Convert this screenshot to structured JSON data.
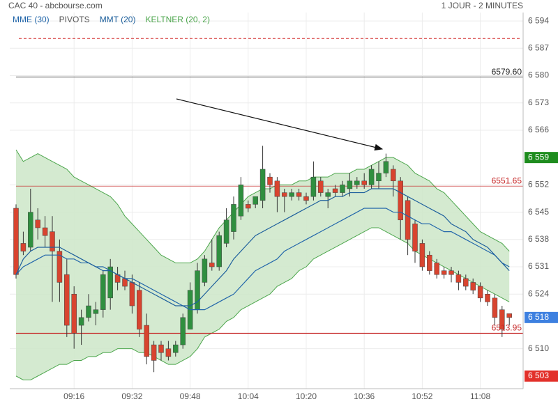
{
  "chart_data": {
    "type": "candlestick",
    "title": "CAC 40 - abcbourse.com",
    "subtitle": "1 JOUR - 2 MINUTES",
    "categories": [
      null,
      null,
      null,
      null,
      null,
      null,
      null,
      null,
      "09:16",
      null,
      null,
      null,
      null,
      null,
      null,
      null,
      "09:32",
      null,
      null,
      null,
      null,
      null,
      null,
      null,
      "09:48",
      null,
      null,
      null,
      null,
      null,
      null,
      null,
      "10:04",
      null,
      null,
      null,
      null,
      null,
      null,
      null,
      "10:20",
      null,
      null,
      null,
      null,
      null,
      null,
      null,
      "10:36",
      null,
      null,
      null,
      null,
      null,
      null,
      null,
      "10:52",
      null,
      null,
      null,
      null,
      null,
      null,
      null,
      "11:08",
      null,
      null,
      null,
      null
    ],
    "open": [
      6546,
      6537,
      6536,
      6543,
      6541,
      6540,
      6535,
      6529,
      6524,
      6516,
      6518,
      6519,
      6520,
      6523,
      6529,
      6528,
      6527,
      6525,
      6516,
      6511,
      6511,
      6510,
      6509,
      6511,
      6515,
      6520,
      6527,
      6532,
      6531,
      6537,
      6540,
      6544,
      6547,
      6547,
      6548,
      6554,
      6553,
      6550,
      6549,
      6550,
      6549,
      6549,
      6553,
      6549,
      6551,
      6550,
      6551,
      6552,
      6553,
      6552,
      6553,
      6555,
      6556,
      6553,
      6548,
      6542,
      6537,
      6534,
      6532,
      6530,
      6530,
      6529,
      6528,
      6527,
      6526,
      6524,
      6523,
      6520,
      6519
    ],
    "high": [
      6547,
      6540,
      6551,
      6546,
      6544,
      6544,
      6538,
      6533,
      6526,
      6520,
      6524,
      6522,
      6530,
      6533,
      6531,
      6530,
      6529,
      6527,
      6519,
      6512,
      6512,
      6512,
      6512,
      6519,
      6527,
      6532,
      6534,
      6538,
      6540,
      6546,
      6549,
      6554,
      6548,
      6549,
      6562,
      6555,
      6554,
      6551,
      6551,
      6551,
      6550,
      6558,
      6554,
      6551,
      6552,
      6553,
      6555,
      6554,
      6555,
      6557,
      6558,
      6560,
      6557,
      6554,
      6549,
      6543,
      6538,
      6535,
      6533,
      6531,
      6531,
      6530,
      6529,
      6528,
      6527,
      6525,
      6524,
      6521,
      6519
    ],
    "low": [
      6528,
      6534,
      6535,
      6538,
      6536,
      6522,
      6522,
      6513,
      6510,
      6511,
      6517,
      6516,
      6518,
      6520,
      6525,
      6525,
      6519,
      6513,
      6506,
      6504,
      6507,
      6507,
      6508,
      6510,
      6515,
      6519,
      6526,
      6530,
      6530,
      6536,
      6538,
      6543,
      6545,
      6546,
      6546,
      6550,
      6545,
      6545,
      6548,
      6548,
      6547,
      6548,
      6549,
      6546,
      6549,
      6549,
      6549,
      6551,
      6551,
      6551,
      6551,
      6554,
      6549,
      6538,
      6534,
      6532,
      6530,
      6529,
      6528,
      6528,
      6527,
      6525,
      6525,
      6524,
      6522,
      6521,
      6516,
      6513,
      6516
    ],
    "close": [
      6529,
      6535,
      6545,
      6541,
      6539,
      6535,
      6527,
      6516,
      6514,
      6518,
      6521,
      6520,
      6529,
      6531,
      6527,
      6526,
      6521,
      6515,
      6508,
      6507,
      6509,
      6508,
      6511,
      6518,
      6525,
      6530,
      6533,
      6531,
      6539,
      6543,
      6547,
      6552,
      6546,
      6549,
      6556,
      6552,
      6549,
      6549,
      6550,
      6549,
      6548,
      6554,
      6550,
      6550,
      6550,
      6552,
      6553,
      6553,
      6552,
      6556,
      6555,
      6558,
      6553,
      6543,
      6538,
      6535,
      6531,
      6530,
      6529,
      6529,
      6529,
      6527,
      6526,
      6525,
      6523,
      6522,
      6518,
      6515,
      6518
    ],
    "up_color": "#2f8f3f",
    "down_color": "#d8442f",
    "lines": [
      {
        "name": "MME (30)",
        "color": "#2266aa",
        "values": [
          6529,
          6531,
          6532,
          6533,
          6534,
          6534,
          6534,
          6533,
          6533,
          6532,
          6532,
          6531,
          6531,
          6530,
          6529,
          6528,
          6528,
          6527,
          6526,
          6525,
          6524,
          6523,
          6522,
          6521,
          6520,
          6520,
          6520,
          6521,
          6522,
          6523,
          6524,
          6526,
          6528,
          6530,
          6531,
          6532,
          6533,
          6535,
          6536,
          6537,
          6538,
          6539,
          6540,
          6541,
          6542,
          6543,
          6544,
          6545,
          6546,
          6546,
          6546,
          6546,
          6545,
          6545,
          6544,
          6543,
          6542,
          6542,
          6541,
          6540,
          6540,
          6539,
          6538,
          6537,
          6536,
          6535,
          6534,
          6532,
          6531
        ]
      },
      {
        "name": "MMT (20)",
        "color": "#1d5f9c",
        "values": [
          6529,
          6533,
          6535,
          6536,
          6536,
          6536,
          6536,
          6535,
          6534,
          6533,
          6532,
          6531,
          6530,
          6530,
          6529,
          6528,
          6527,
          6526,
          6525,
          6524,
          6523,
          6522,
          6521,
          6521,
          6521,
          6522,
          6524,
          6526,
          6528,
          6530,
          6533,
          6535,
          6537,
          6539,
          6540,
          6541,
          6542,
          6543,
          6544,
          6545,
          6546,
          6547,
          6548,
          6548,
          6549,
          6549,
          6550,
          6550,
          6550,
          6551,
          6551,
          6551,
          6551,
          6550,
          6549,
          6548,
          6547,
          6546,
          6545,
          6544,
          6542,
          6541,
          6540,
          6538,
          6537,
          6536,
          6534,
          6532,
          6530
        ]
      }
    ],
    "keltner": {
      "name": "KELTNER (20, 2)",
      "color": "#4ca64c",
      "fill": "#cfe8cb",
      "upper": [
        6561,
        6558,
        6559,
        6560,
        6559,
        6558,
        6557,
        6556,
        6554,
        6553,
        6552,
        6551,
        6550,
        6549,
        6547,
        6544,
        6542,
        6540,
        6538,
        6536,
        6534,
        6533,
        6532,
        6532,
        6532,
        6533,
        6535,
        6538,
        6541,
        6543,
        6545,
        6547,
        6549,
        6550,
        6551,
        6551,
        6552,
        6552,
        6552,
        6553,
        6553,
        6554,
        6554,
        6554,
        6555,
        6555,
        6555,
        6556,
        6556,
        6557,
        6558,
        6559,
        6559,
        6558,
        6557,
        6555,
        6554,
        6553,
        6551,
        6550,
        6548,
        6546,
        6544,
        6542,
        6540,
        6539,
        6538,
        6537,
        6535
      ],
      "lower": [
        6503,
        6502,
        6502,
        6503,
        6504,
        6505,
        6506,
        6506,
        6507,
        6507,
        6508,
        6508,
        6509,
        6509,
        6510,
        6510,
        6510,
        6509,
        6509,
        6508,
        6507,
        6506,
        6506,
        6507,
        6508,
        6510,
        6513,
        6514,
        6515,
        6517,
        6518,
        6520,
        6521,
        6522,
        6523,
        6524,
        6526,
        6527,
        6528,
        6530,
        6531,
        6533,
        6534,
        6535,
        6536,
        6537,
        6538,
        6539,
        6540,
        6541,
        6541,
        6540,
        6539,
        6538,
        6537,
        6535,
        6534,
        6533,
        6532,
        6531,
        6530,
        6529,
        6528,
        6527,
        6526,
        6525,
        6524,
        6523,
        6522
      ]
    },
    "pivots": {
      "name": "PIVOTS",
      "color": "#555555",
      "levels": [
        {
          "value": 6579.6,
          "label": "6579.60",
          "color": "#222222"
        },
        {
          "value": 6551.65,
          "label": "6551.65",
          "color": "#c62828"
        },
        {
          "value": 6513.95,
          "label": "6513.95",
          "color": "#c62828"
        }
      ]
    },
    "dashed_levels": [
      {
        "value": 6589.5,
        "color": "#d32f2f"
      }
    ],
    "price_tags": [
      {
        "value": 6559,
        "label": "6 559",
        "color": "#1e8c1e"
      },
      {
        "value": 6518,
        "label": "6 518",
        "color": "#3d80e0"
      },
      {
        "value": 6503,
        "label": "6 503",
        "color": "#e2302a"
      }
    ],
    "ylim": [
      6500.3,
      6595.8
    ],
    "yticks": [
      {
        "value": 6594,
        "label": "6 594"
      },
      {
        "value": 6587,
        "label": "6 587"
      },
      {
        "value": 6580,
        "label": "6 580"
      },
      {
        "value": 6573,
        "label": "6 573"
      },
      {
        "value": 6566,
        "label": "6 566"
      },
      {
        "value": 6552,
        "label": "6 552"
      },
      {
        "value": 6545,
        "label": "6 545"
      },
      {
        "value": 6538,
        "label": "6 538"
      },
      {
        "value": 6531,
        "label": "6 531"
      },
      {
        "value": 6524,
        "label": "6 524"
      },
      {
        "value": 6510,
        "label": "6 510"
      }
    ],
    "grid": true
  }
}
